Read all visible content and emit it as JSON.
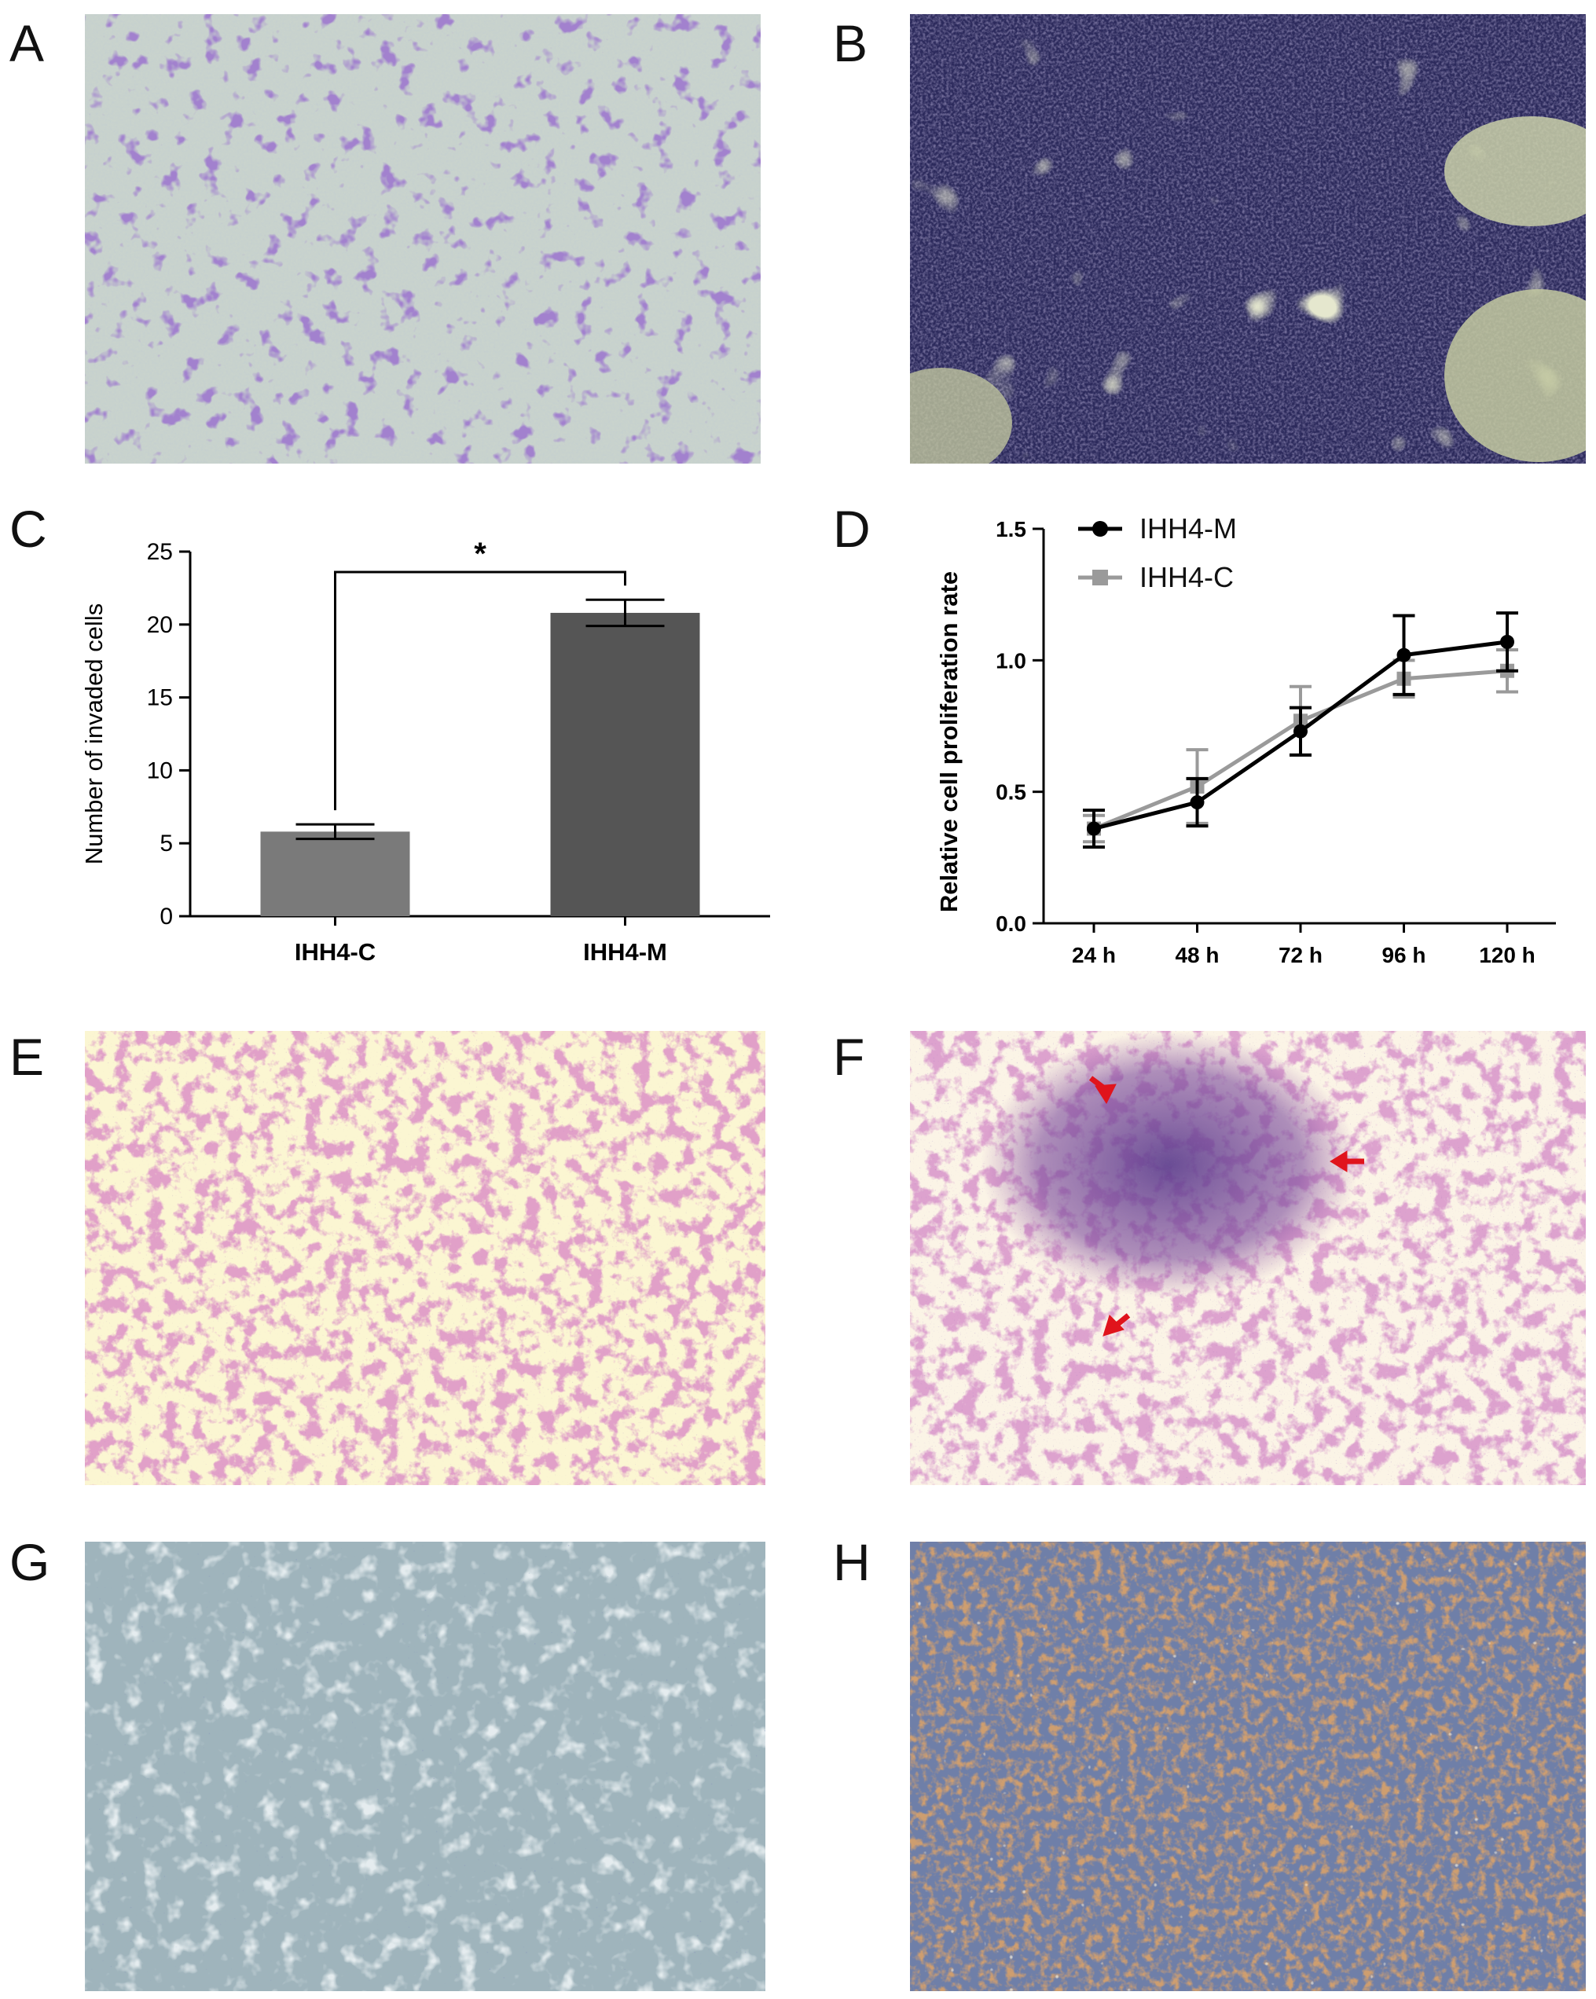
{
  "figure": {
    "panels": [
      {
        "letter": "A",
        "content": "micrograph"
      },
      {
        "letter": "B",
        "content": "micrograph"
      },
      {
        "letter": "C",
        "content": "chart"
      },
      {
        "letter": "D",
        "content": "chart"
      },
      {
        "letter": "E",
        "content": "micrograph"
      },
      {
        "letter": "F",
        "content": "micrograph"
      },
      {
        "letter": "G",
        "content": "micrograph"
      },
      {
        "letter": "H",
        "content": "micrograph"
      }
    ],
    "colors": {
      "crystal_violet": "#5a3a9a",
      "dense_stain": "#2c2a5c",
      "he_pink": "#c05a8a",
      "he_background": "#fbf6d2",
      "ihc_brown": "#a0582a",
      "ihc_blue": "#6f7fa8",
      "negative_ihc": "#9fb4bc",
      "arrow_red": "#e0141c"
    }
  },
  "chart_data": [
    {
      "panel": "C",
      "type": "bar",
      "categories": [
        "IHH4-C",
        "IHH4-M"
      ],
      "values": [
        5.8,
        20.8
      ],
      "errors": [
        0.5,
        0.9
      ],
      "bar_colors": [
        "#7a7a7a",
        "#555555"
      ],
      "ylabel": "Number of invaded cells",
      "xlabel": "",
      "ylim": [
        0,
        25
      ],
      "yticks": [
        "0",
        "5",
        "10",
        "15",
        "20",
        "25"
      ],
      "significance": "*",
      "grid": false
    },
    {
      "panel": "D",
      "type": "line",
      "categories": [
        "24 h",
        "48 h",
        "72 h",
        "96 h",
        "120 h"
      ],
      "series": [
        {
          "name": "IHH4-M",
          "values": [
            0.36,
            0.46,
            0.73,
            1.02,
            1.07
          ],
          "errors": [
            0.07,
            0.09,
            0.09,
            0.15,
            0.11
          ],
          "color": "#000000",
          "marker": "circle"
        },
        {
          "name": "IHH4-C",
          "values": [
            0.36,
            0.52,
            0.77,
            0.93,
            0.96
          ],
          "errors": [
            0.05,
            0.14,
            0.13,
            0.07,
            0.08
          ],
          "color": "#9a9a9a",
          "marker": "square"
        }
      ],
      "ylabel": "Relative cell proliferation rate",
      "xlabel": "",
      "ylim": [
        0,
        1.5
      ],
      "yticks": [
        "0.0",
        "0.5",
        "1.0",
        "1.5"
      ],
      "legend": "top-left",
      "grid": false
    }
  ]
}
